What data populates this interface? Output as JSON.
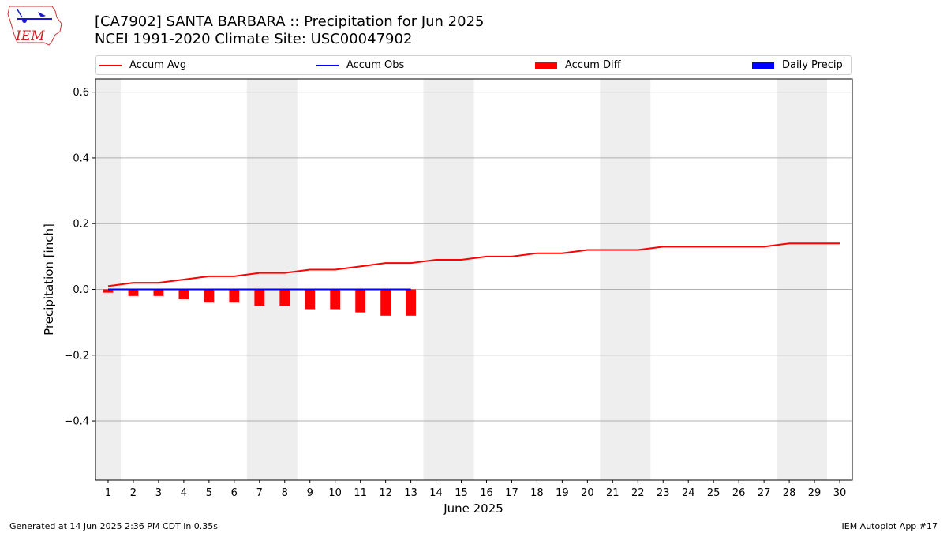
{
  "logo": {
    "text": "IEM",
    "icon": "iowa-state-outline-logo"
  },
  "footer": {
    "left": "Generated at 14 Jun 2025 2:36 PM CDT in 0.35s",
    "right": "IEM Autoplot App #17"
  },
  "chart_data": {
    "type": "bar",
    "title": "[CA7902] SANTA BARBARA :: Precipitation for Jun 2025",
    "subtitle": "NCEI 1991-2020 Climate Site: USC00047902",
    "xlabel": "June 2025",
    "ylabel": "Precipitation [inch]",
    "ylim": [
      -0.58,
      0.64
    ],
    "yticks": [
      0.6,
      0.4,
      0.2,
      0.0,
      -0.2,
      -0.4
    ],
    "ytick_labels": [
      "0.6",
      "0.4",
      "0.2",
      "0.0",
      "−0.2",
      "−0.4"
    ],
    "grid": "horizontal",
    "legend_position": "top",
    "x": [
      1,
      2,
      3,
      4,
      5,
      6,
      7,
      8,
      9,
      10,
      11,
      12,
      13,
      14,
      15,
      16,
      17,
      18,
      19,
      20,
      21,
      22,
      23,
      24,
      25,
      26,
      27,
      28,
      29,
      30
    ],
    "weekend_shading": [
      [
        0.5,
        1.5
      ],
      [
        6.5,
        8.5
      ],
      [
        13.5,
        15.5
      ],
      [
        20.5,
        22.5
      ],
      [
        27.5,
        29.5
      ]
    ],
    "series": [
      {
        "name": "Accum Avg",
        "kind": "line",
        "color": "#ff0000",
        "x": [
          1,
          2,
          3,
          4,
          5,
          6,
          7,
          8,
          9,
          10,
          11,
          12,
          13,
          14,
          15,
          16,
          17,
          18,
          19,
          20,
          21,
          22,
          23,
          24,
          25,
          26,
          27,
          28,
          29,
          30
        ],
        "values": [
          0.01,
          0.02,
          0.02,
          0.03,
          0.04,
          0.04,
          0.05,
          0.05,
          0.06,
          0.06,
          0.07,
          0.08,
          0.08,
          0.09,
          0.09,
          0.1,
          0.1,
          0.11,
          0.11,
          0.12,
          0.12,
          0.12,
          0.13,
          0.13,
          0.13,
          0.13,
          0.13,
          0.14,
          0.14,
          0.14
        ]
      },
      {
        "name": "Accum Obs",
        "kind": "line",
        "color": "#0000ff",
        "x": [
          1,
          2,
          3,
          4,
          5,
          6,
          7,
          8,
          9,
          10,
          11,
          12,
          13
        ],
        "values": [
          0,
          0,
          0,
          0,
          0,
          0,
          0,
          0,
          0,
          0,
          0,
          0,
          0
        ]
      },
      {
        "name": "Accum Diff",
        "kind": "bar",
        "color": "#ff0000",
        "x": [
          1,
          2,
          3,
          4,
          5,
          6,
          7,
          8,
          9,
          10,
          11,
          12,
          13
        ],
        "values": [
          -0.01,
          -0.02,
          -0.02,
          -0.03,
          -0.04,
          -0.04,
          -0.05,
          -0.05,
          -0.06,
          -0.06,
          -0.07,
          -0.08,
          -0.08
        ]
      },
      {
        "name": "Daily Precip",
        "kind": "bar",
        "color": "#0000ff",
        "x": [
          1,
          2,
          3,
          4,
          5,
          6,
          7,
          8,
          9,
          10,
          11,
          12,
          13
        ],
        "values": [
          0,
          0,
          0,
          0,
          0,
          0,
          0,
          0,
          0,
          0,
          0,
          0,
          0
        ]
      }
    ]
  }
}
